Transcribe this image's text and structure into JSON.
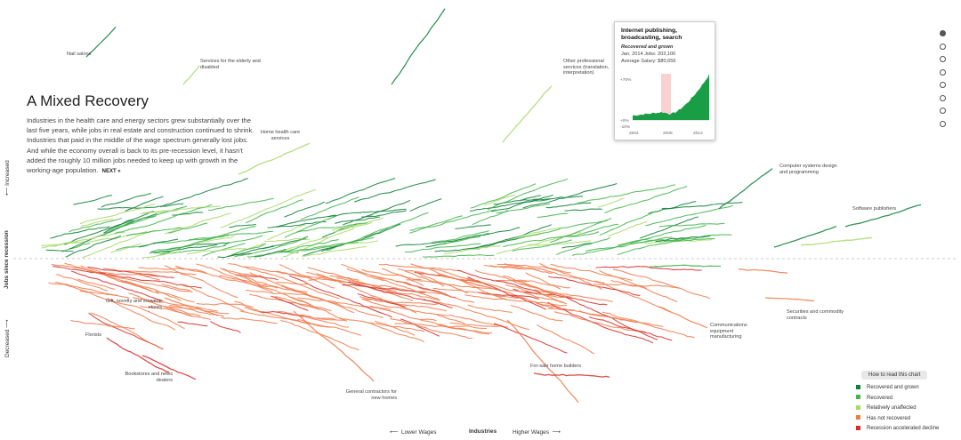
{
  "intro": {
    "title": "A Mixed Recovery",
    "body": "Industries in the health care and energy sectors grew substantially over the last five years, while jobs in real estate and construction continued to shrink. Industries that paid in the middle of the wage spectrum generally lost jobs. And while the economy overall is back to its pre-recession level, it hasn't added the roughly 10 million jobs needed to keep up with growth in the working-age population.",
    "next_label": "NEXT »"
  },
  "tooltip": {
    "title": "Internet publishing, broadcasting, search",
    "status": "Recovered and grown",
    "jobs_line": "Jan. 2014 Jobs: 203,100",
    "salary_line": "Average Salary: $80,656",
    "y_top": "+70%",
    "y_zero": "+0%",
    "y_bottom": "-10%",
    "x_ticks": [
      "2004",
      "2008",
      "2013"
    ],
    "fill_color": "#1a9e45"
  },
  "axes": {
    "y_increased": "Increased",
    "y_title": "Jobs since recession",
    "y_decreased": "Decreased",
    "x_left": "Lower Wages",
    "x_title": "Industries",
    "x_right": "Higher Wages",
    "arrow_left": "⟵",
    "arrow_right": "⟶",
    "arrow_up": "⟵",
    "arrow_down": "⟶"
  },
  "nav": {
    "dots": 8,
    "active_index": 0
  },
  "legend": {
    "title": "How to read this chart",
    "items": [
      {
        "label": "Recovered and grown",
        "color": "#11813a"
      },
      {
        "label": "Recovered",
        "color": "#43b54c"
      },
      {
        "label": "Relatively unaffected",
        "color": "#a8d96a"
      },
      {
        "label": "Has not recovered",
        "color": "#f07a4a"
      },
      {
        "label": "Recession accelerated decline",
        "color": "#d42e2a"
      }
    ]
  },
  "chart_data": {
    "type": "line",
    "title": "A Mixed Recovery",
    "xlabel": "Industries (lower wages to higher wages)",
    "ylabel": "Jobs since recession",
    "x_range": [
      "Lower Wages",
      "Higher Wages"
    ],
    "y_categories": [
      "Decreased",
      "Increased"
    ],
    "baseline": "pre-recession level (0%)",
    "labeled_series": [
      {
        "name": "Nail salons",
        "status": "Recovered and grown",
        "change_pct": 45
      },
      {
        "name": "Services for the elderly and disabled",
        "status": "Relatively unaffected",
        "change_pct": 40
      },
      {
        "name": "Home health care services",
        "status": "Relatively unaffected",
        "change_pct": 22
      },
      {
        "name": "Other professional services (translation, interpretation)",
        "status": "Relatively unaffected",
        "change_pct": 38
      },
      {
        "name": "Internet publishing, broadcasting, search",
        "status": "Recovered and grown",
        "change_pct": 70
      },
      {
        "name": "Computer systems design and programming",
        "status": "Recovered and grown",
        "change_pct": 16
      },
      {
        "name": "Software publishers",
        "status": "Recovered and grown",
        "change_pct": 10
      },
      {
        "name": "Gift, novelty and souvenir stores",
        "status": "Has not recovered",
        "change_pct": -12
      },
      {
        "name": "Florists",
        "status": "Recession accelerated decline",
        "change_pct": -30
      },
      {
        "name": "Bookstores and news dealers",
        "status": "Recession accelerated decline",
        "change_pct": -40
      },
      {
        "name": "General contractors for new homes",
        "status": "Has not recovered",
        "change_pct": -45
      },
      {
        "name": "For-sale home builders",
        "status": "Has not recovered",
        "change_pct": -42
      },
      {
        "name": "Communications equipment manufacturing",
        "status": "Has not recovered",
        "change_pct": -22
      },
      {
        "name": "Securities and commodity contracts",
        "status": "Has not recovered",
        "change_pct": -16
      }
    ]
  },
  "labels": {
    "nail_salons": "Nail salons",
    "elderly": "Services for the elderly and disabled",
    "home_health": "Home health care services",
    "other_prof": "Other professional services (translation, interpretation)",
    "computer_sys": "Computer systems design and programming",
    "software": "Software publishers",
    "gift": "Gift, novelty and souvenir stores",
    "florists": "Florists",
    "bookstores": "Bookstores and news dealers",
    "gen_contractors": "General contractors for new homes",
    "home_builders": "For-sale home builders",
    "comm_equip": "Communications equipment manufacturing",
    "securities": "Securities and commodity contracts"
  }
}
